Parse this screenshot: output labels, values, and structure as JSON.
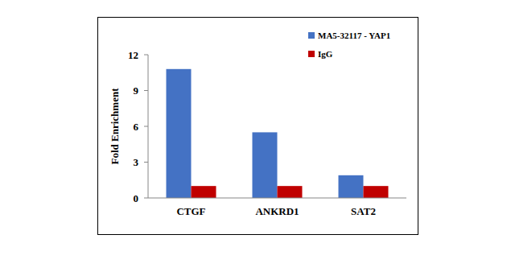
{
  "chart_data": {
    "type": "bar",
    "y_label": "Fold Enrichment",
    "categories": [
      "CTGF",
      "ANKRD1",
      "SAT2"
    ],
    "series": [
      {
        "name": "MA5-32117 - YAP1",
        "color": "#4472c4",
        "values": [
          10.8,
          5.5,
          1.9
        ]
      },
      {
        "name": "IgG",
        "color": "#c00000",
        "values": [
          1.0,
          1.0,
          1.0
        ]
      }
    ],
    "ylim": [
      0,
      12
    ],
    "yticks": [
      0,
      3,
      6,
      9,
      12
    ],
    "grid": false,
    "legend": "upper right"
  }
}
